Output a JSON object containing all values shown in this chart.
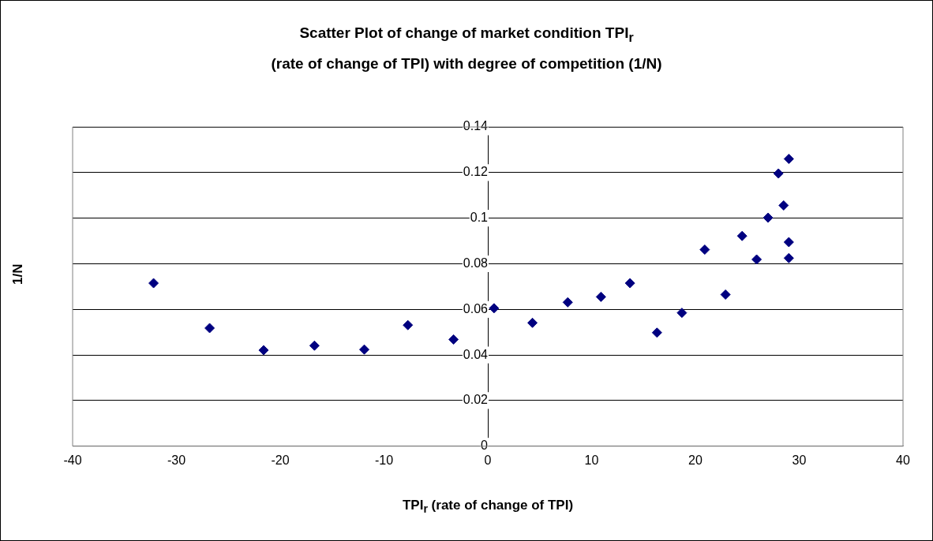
{
  "chart_data": {
    "type": "scatter",
    "title": "Scatter Plot of change of market condition TPI$_{r}$\n(rate of change of TPI) with degree of competition (1/N)",
    "xlabel": "TPI$_{r}$ (rate of change of TPI)",
    "ylabel": "1/N",
    "series": [
      {
        "color": "#000080",
        "x": [
          -32.2,
          -26.8,
          -21.6,
          -16.7,
          -11.9,
          -7.7,
          -3.3,
          0.6,
          4.3,
          7.7,
          10.9,
          13.7,
          16.3,
          18.7,
          20.9,
          22.9,
          24.5,
          25.9,
          27.0,
          28.0,
          28.5,
          29.0,
          29.0,
          29.0
        ],
        "values": [
          0.0715,
          0.0518,
          0.0421,
          0.0441,
          0.0424,
          0.0531,
          0.0468,
          0.0605,
          0.0541,
          0.0631,
          0.0655,
          0.0715,
          0.0498,
          0.0585,
          0.0862,
          0.0665,
          0.0922,
          0.0819,
          0.1002,
          0.1196,
          0.1056,
          0.0895,
          0.0825,
          0.126
        ]
      }
    ],
    "xlim": [
      -40,
      40
    ],
    "xticks": [
      -40,
      -30,
      -20,
      -10,
      0,
      10,
      20,
      30,
      40
    ],
    "ylim": [
      0,
      0.14
    ],
    "yticks": [
      0,
      0.02,
      0.04,
      0.06,
      0.08,
      0.1,
      0.12,
      0.14
    ],
    "grid": "y",
    "legend": false,
    "marker": "diamond"
  }
}
